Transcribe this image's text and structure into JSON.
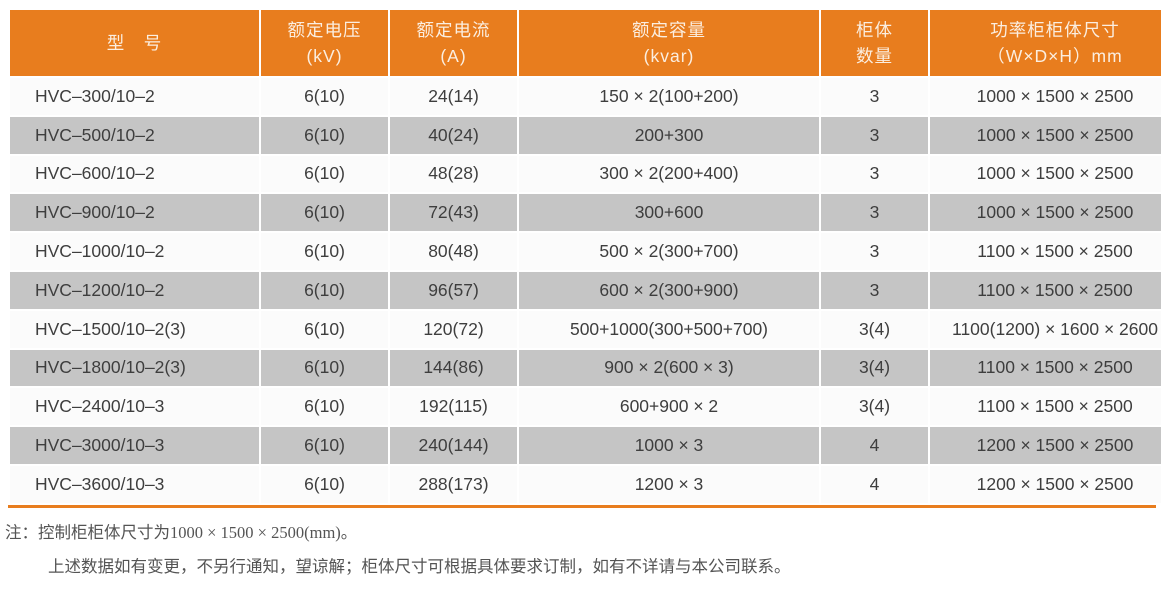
{
  "table": {
    "columns": [
      {
        "id": "model",
        "line1": "型　号",
        "line2": ""
      },
      {
        "id": "rated-voltage",
        "line1": "额定电压",
        "line2": "(kV)"
      },
      {
        "id": "rated-current",
        "line1": "额定电流",
        "line2": "(A)"
      },
      {
        "id": "rated-capacity",
        "line1": "额定容量",
        "line2": "(kvar)"
      },
      {
        "id": "cabinet-count",
        "line1": "柜体",
        "line2": "数量"
      },
      {
        "id": "cabinet-size",
        "line1": "功率柜柜体尺寸",
        "line2": "（W×D×H）mm"
      }
    ],
    "rows": [
      [
        "HVC–300/10–2",
        "6(10)",
        "24(14)",
        "150 × 2(100+200)",
        "3",
        "1000 × 1500 × 2500"
      ],
      [
        "HVC–500/10–2",
        "6(10)",
        "40(24)",
        "200+300",
        "3",
        "1000 × 1500 × 2500"
      ],
      [
        "HVC–600/10–2",
        "6(10)",
        "48(28)",
        "300 × 2(200+400)",
        "3",
        "1000 × 1500 × 2500"
      ],
      [
        "HVC–900/10–2",
        "6(10)",
        "72(43)",
        "300+600",
        "3",
        "1000 × 1500 × 2500"
      ],
      [
        "HVC–1000/10–2",
        "6(10)",
        "80(48)",
        "500 × 2(300+700)",
        "3",
        "1100 × 1500 × 2500"
      ],
      [
        "HVC–1200/10–2",
        "6(10)",
        "96(57)",
        "600 × 2(300+900)",
        "3",
        "1100 × 1500 × 2500"
      ],
      [
        "HVC–1500/10–2(3)",
        "6(10)",
        "120(72)",
        "500+1000(300+500+700)",
        "3(4)",
        "1100(1200) × 1600 × 2600"
      ],
      [
        "HVC–1800/10–2(3)",
        "6(10)",
        "144(86)",
        "900 × 2(600 × 3)",
        "3(4)",
        "1100 × 1500 × 2500"
      ],
      [
        "HVC–2400/10–3",
        "6(10)",
        "192(115)",
        "600+900 × 2",
        "3(4)",
        "1100 × 1500 × 2500"
      ],
      [
        "HVC–3000/10–3",
        "6(10)",
        "240(144)",
        "1000 × 3",
        "4",
        "1200 × 1500 × 2500"
      ],
      [
        "HVC–3600/10–3",
        "6(10)",
        "288(173)",
        "1200 × 3",
        "4",
        "1200 × 1500 × 2500"
      ]
    ]
  },
  "notes": {
    "line1": "注：控制柜柜体尺寸为1000 × 1500 × 2500(mm)。",
    "line2": "上述数据如有变更，不另行通知，望谅解；柜体尺寸可根据具体要求订制，如有不详请与本公司联系。"
  },
  "colors": {
    "accent_orange": "#e87d1e",
    "row_gray": "#c5c5c5",
    "row_white": "#fbfbfb",
    "header_text": "#fbeee0",
    "cell_text": "#3e3e3e",
    "note_text": "#545454"
  }
}
